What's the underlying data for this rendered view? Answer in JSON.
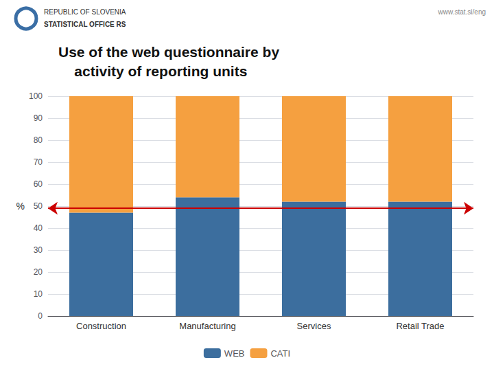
{
  "chart_data": {
    "type": "bar",
    "title": "Use of the web questionnaire by\n    activity of reporting units",
    "ylabel": "%",
    "categories": [
      "Construction",
      "Manufacturing",
      "Services",
      "Retail Trade"
    ],
    "series": [
      {
        "name": "WEB",
        "color": "#3C6E9E",
        "values": [
          47,
          54,
          52,
          52
        ]
      },
      {
        "name": "CATI",
        "color": "#F5A040",
        "values": [
          53,
          46,
          48,
          48
        ]
      }
    ],
    "stacked": true,
    "ylim": [
      0,
      100
    ],
    "yticks": [
      0,
      10,
      20,
      30,
      40,
      50,
      60,
      70,
      80,
      90,
      100
    ],
    "grid": true,
    "legend": "bottom",
    "annotations": [
      {
        "text": "REPUBLIC OF SLOVENIA"
      },
      {
        "text": "STATISTICAL OFFICE RS"
      },
      {
        "text": "www.stat.si/eng"
      },
      {
        "y": 49,
        "color": "#CC0000",
        "marker": "arrow"
      }
    ]
  }
}
